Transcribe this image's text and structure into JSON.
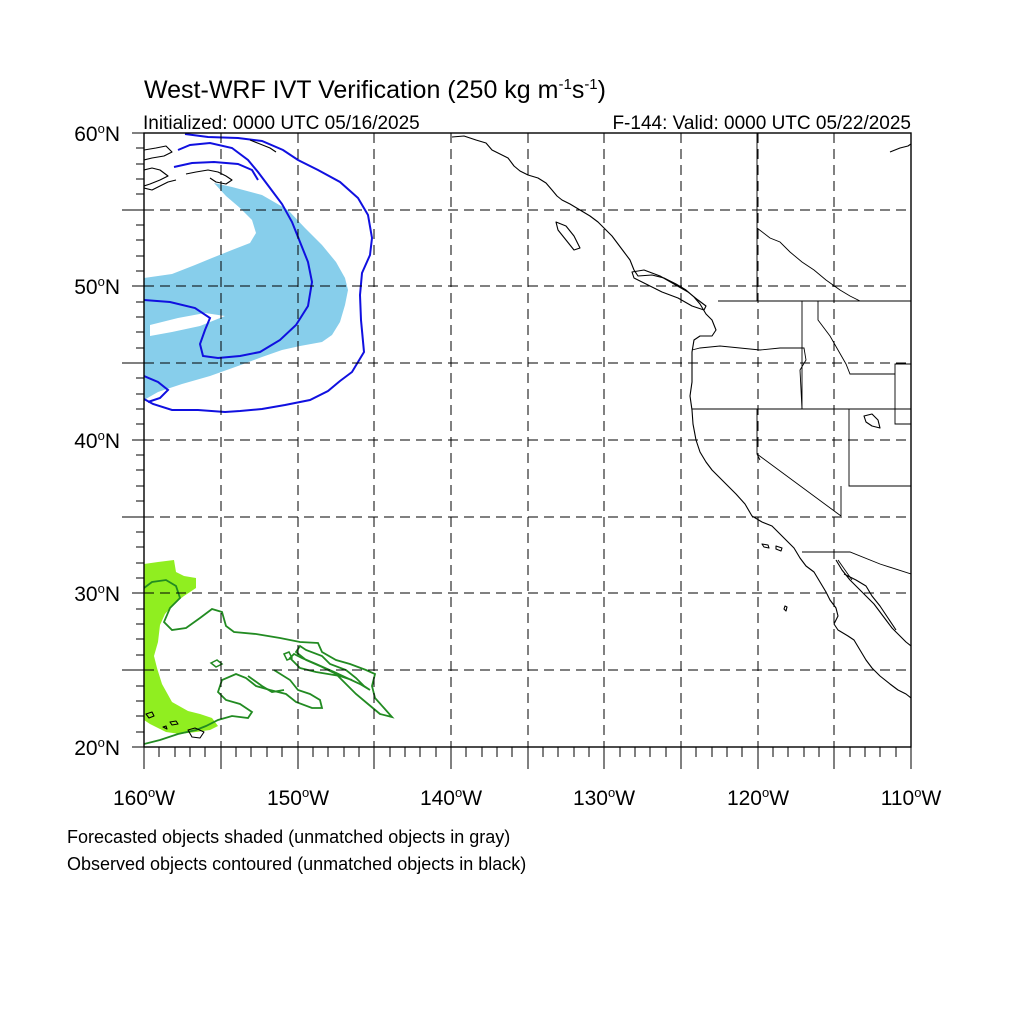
{
  "title": "West-WRF IVT Verification (250 kg m",
  "title_sup1": "-1",
  "title_mid": "s",
  "title_sup2": "-1",
  "title_end": ")",
  "init_label": "Initialized: 0000 UTC 05/16/2025",
  "valid_label": "F-144: Valid: 0000 UTC 05/22/2025",
  "lat_labels": [
    {
      "deg": "60",
      "hemi": "N"
    },
    {
      "deg": "50",
      "hemi": "N"
    },
    {
      "deg": "40",
      "hemi": "N"
    },
    {
      "deg": "30",
      "hemi": "N"
    },
    {
      "deg": "20",
      "hemi": "N"
    }
  ],
  "lon_labels": [
    {
      "deg": "160",
      "hemi": "W"
    },
    {
      "deg": "150",
      "hemi": "W"
    },
    {
      "deg": "140",
      "hemi": "W"
    },
    {
      "deg": "130",
      "hemi": "W"
    },
    {
      "deg": "120",
      "hemi": "W"
    },
    {
      "deg": "110",
      "hemi": "W"
    }
  ],
  "footnote_1": "Forecasted objects shaded (unmatched objects in gray)",
  "footnote_2": "Observed objects contoured (unmatched objects in black)",
  "map": {
    "lon_range": [
      -160,
      -110
    ],
    "lat_range": [
      20,
      60
    ],
    "grid_interval_deg": 5,
    "colors": {
      "forecast_object_1": "#87ceeb",
      "observed_object_1": "#1010e0",
      "forecast_object_2": "#90ee20",
      "observed_object_2": "#228b22",
      "coastline": "#000000"
    }
  }
}
